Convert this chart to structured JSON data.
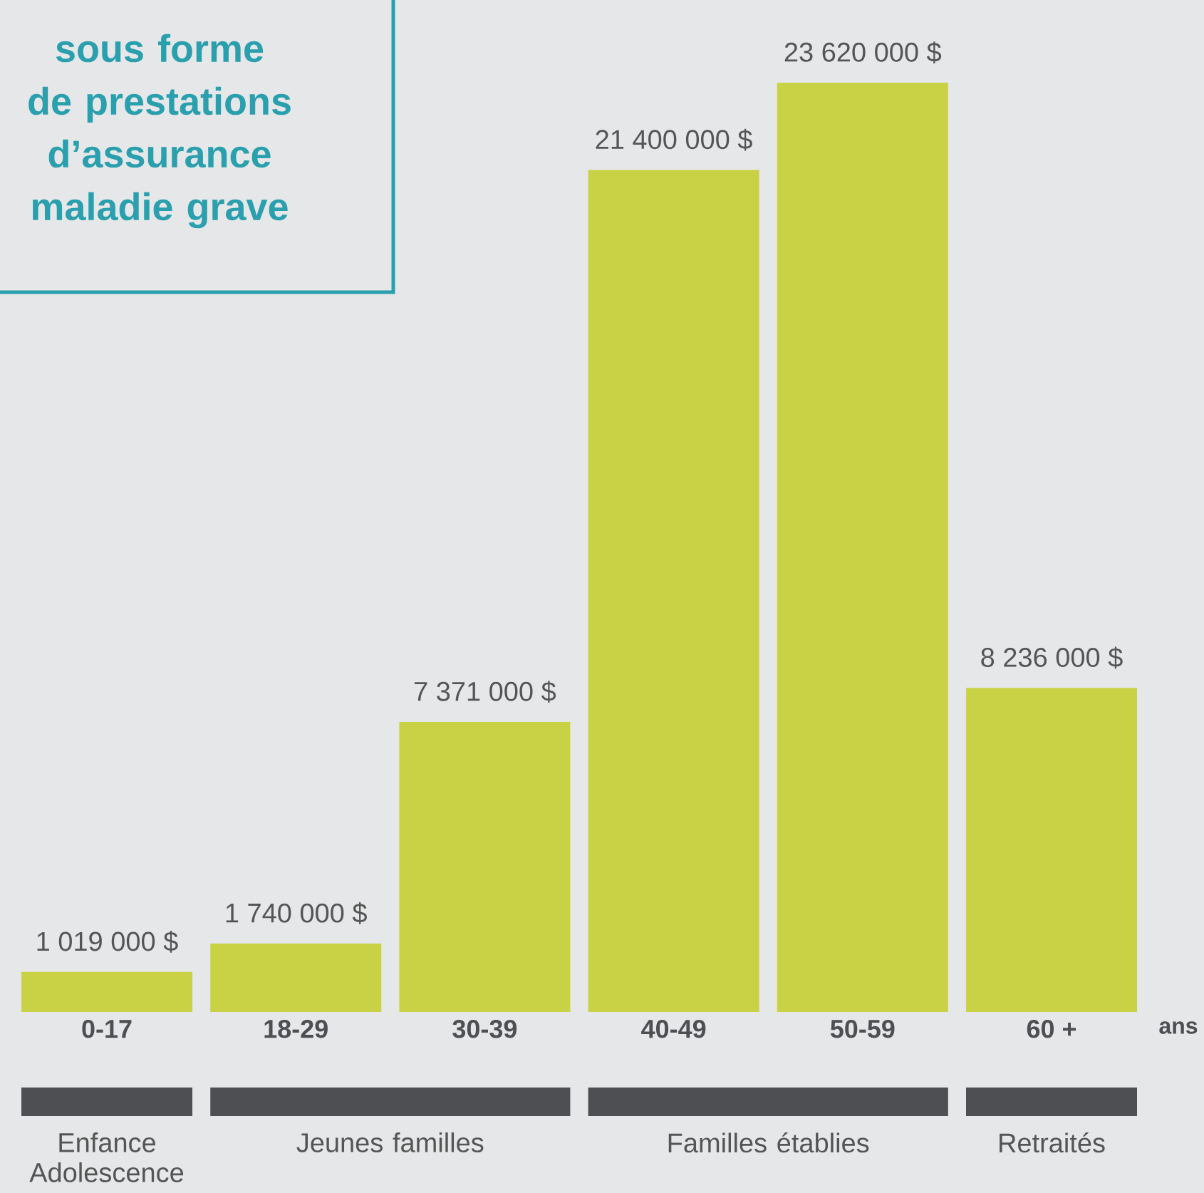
{
  "chart_data": {
    "type": "bar",
    "title": "sous forme de prestations d’assurance maladie grave",
    "categories": [
      "0-17",
      "18-29",
      "30-39",
      "40-49",
      "50-59",
      "60 +"
    ],
    "values": [
      1019000,
      1740000,
      7371000,
      21400000,
      23620000,
      8236000
    ],
    "value_labels": [
      "1 019 000 $",
      "1 740 000 $",
      "7 371 000 $",
      "21 400 000 $",
      "23 620 000 $",
      "8 236 000 $"
    ],
    "color": "#c8d244",
    "xlabel": "ans",
    "annotations": [
      "Enfance Adolescence",
      "Jeunes familles",
      "Familles établies",
      "Retraités"
    ]
  }
}
